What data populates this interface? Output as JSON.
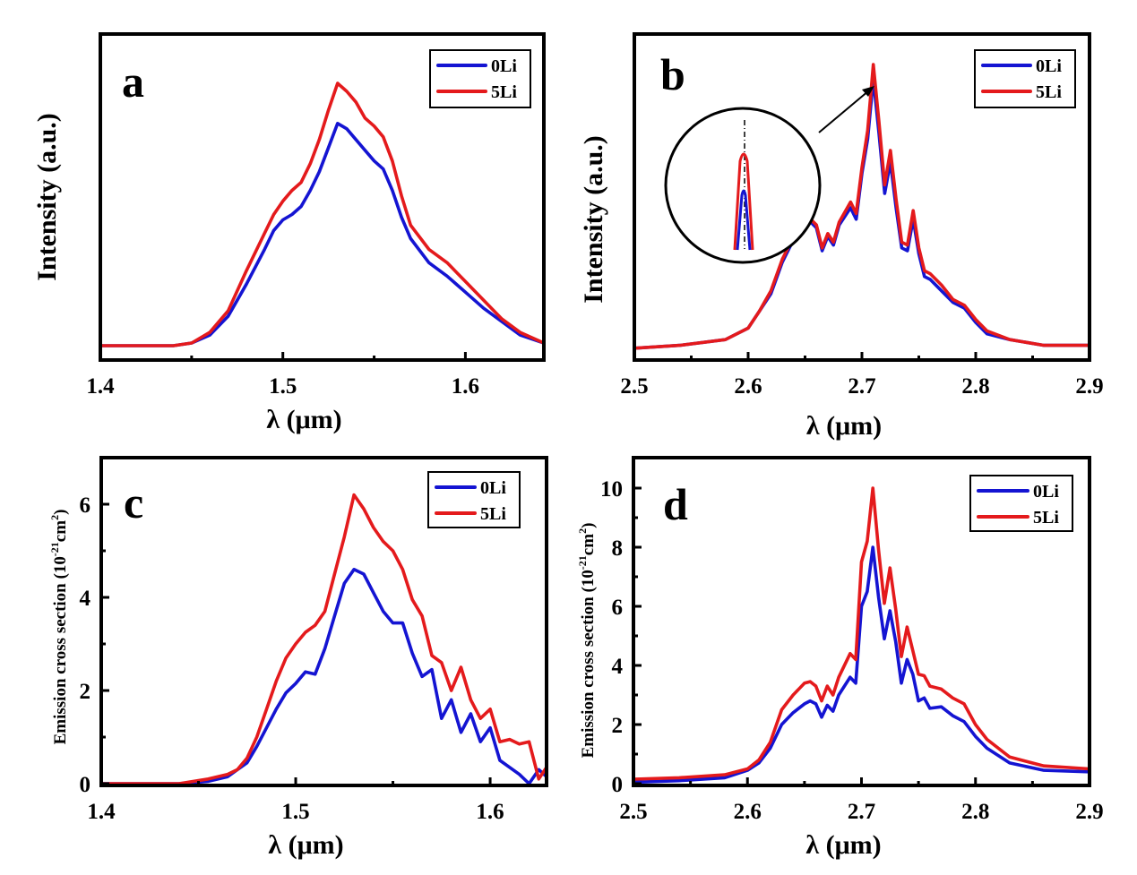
{
  "figure": {
    "colors": {
      "0Li": "#1414d2",
      "5Li": "#e41a1c",
      "axis": "#000000"
    }
  },
  "chart_data": [
    {
      "id": "a",
      "type": "line",
      "panel_label": "a",
      "title": "",
      "xlabel": "λ (μm)",
      "ylabel": "Intensity (a.u.)",
      "xlim": [
        1.4,
        1.643
      ],
      "ylim": [
        0,
        1.0
      ],
      "xticks": [
        1.4,
        1.5,
        1.6
      ],
      "xtick_labels": [
        "1.4",
        "1.5",
        "1.6"
      ],
      "xminor": [
        1.45,
        1.55
      ],
      "yticks": [],
      "legend": {
        "placement": "top-right",
        "entries": [
          "0Li",
          "5Li"
        ]
      },
      "series": [
        {
          "name": "0Li",
          "x": [
            1.4,
            1.42,
            1.44,
            1.45,
            1.46,
            1.47,
            1.48,
            1.49,
            1.495,
            1.5,
            1.505,
            1.51,
            1.515,
            1.52,
            1.525,
            1.53,
            1.535,
            1.54,
            1.545,
            1.55,
            1.555,
            1.56,
            1.565,
            1.57,
            1.58,
            1.59,
            1.6,
            1.61,
            1.62,
            1.63,
            1.643
          ],
          "y": [
            0.02,
            0.02,
            0.02,
            0.03,
            0.06,
            0.13,
            0.25,
            0.38,
            0.45,
            0.49,
            0.51,
            0.54,
            0.6,
            0.67,
            0.76,
            0.85,
            0.83,
            0.79,
            0.75,
            0.71,
            0.68,
            0.6,
            0.5,
            0.42,
            0.33,
            0.28,
            0.22,
            0.16,
            0.11,
            0.06,
            0.03
          ]
        },
        {
          "name": "5Li",
          "x": [
            1.4,
            1.42,
            1.44,
            1.45,
            1.46,
            1.47,
            1.48,
            1.49,
            1.495,
            1.5,
            1.505,
            1.51,
            1.515,
            1.52,
            1.525,
            1.53,
            1.535,
            1.54,
            1.545,
            1.55,
            1.555,
            1.56,
            1.565,
            1.57,
            1.58,
            1.59,
            1.6,
            1.61,
            1.62,
            1.63,
            1.643
          ],
          "y": [
            0.02,
            0.02,
            0.02,
            0.03,
            0.07,
            0.15,
            0.3,
            0.44,
            0.51,
            0.56,
            0.6,
            0.63,
            0.7,
            0.79,
            0.9,
            1.0,
            0.97,
            0.93,
            0.87,
            0.84,
            0.8,
            0.71,
            0.58,
            0.47,
            0.38,
            0.33,
            0.26,
            0.19,
            0.12,
            0.07,
            0.03
          ]
        }
      ]
    },
    {
      "id": "b",
      "type": "line",
      "panel_label": "b",
      "title": "",
      "xlabel": "λ (μm)",
      "ylabel": "Intensity (a.u.)",
      "xlim": [
        2.5,
        2.9
      ],
      "ylim": [
        0,
        1.0
      ],
      "xticks": [
        2.5,
        2.6,
        2.7,
        2.8,
        2.9
      ],
      "xtick_labels": [
        "2.5",
        "2.6",
        "2.7",
        "2.8",
        "2.9"
      ],
      "xminor": [
        2.55,
        2.65,
        2.75,
        2.85
      ],
      "yticks": [],
      "legend": {
        "placement": "top-right",
        "entries": [
          "0Li",
          "5Li"
        ]
      },
      "annotations": [
        "circular inset magnifying the main peak near 2.71 μm (5Li peak above 0Li), with arrow pointing to the peak"
      ],
      "series": [
        {
          "name": "0Li",
          "x": [
            2.5,
            2.54,
            2.58,
            2.6,
            2.61,
            2.62,
            2.63,
            2.64,
            2.65,
            2.655,
            2.66,
            2.665,
            2.67,
            2.675,
            2.68,
            2.69,
            2.695,
            2.7,
            2.705,
            2.71,
            2.715,
            2.72,
            2.725,
            2.73,
            2.735,
            2.74,
            2.745,
            2.75,
            2.755,
            2.76,
            2.77,
            2.78,
            2.79,
            2.8,
            2.81,
            2.83,
            2.86,
            2.9
          ],
          "y": [
            0.01,
            0.02,
            0.04,
            0.08,
            0.14,
            0.2,
            0.31,
            0.39,
            0.44,
            0.45,
            0.43,
            0.35,
            0.4,
            0.37,
            0.44,
            0.5,
            0.46,
            0.62,
            0.74,
            0.95,
            0.76,
            0.55,
            0.66,
            0.5,
            0.36,
            0.35,
            0.46,
            0.34,
            0.26,
            0.25,
            0.21,
            0.17,
            0.15,
            0.1,
            0.06,
            0.04,
            0.02,
            0.02
          ]
        },
        {
          "name": "5Li",
          "x": [
            2.5,
            2.54,
            2.58,
            2.6,
            2.61,
            2.62,
            2.63,
            2.64,
            2.65,
            2.655,
            2.66,
            2.665,
            2.67,
            2.675,
            2.68,
            2.69,
            2.695,
            2.7,
            2.705,
            2.71,
            2.715,
            2.72,
            2.725,
            2.73,
            2.735,
            2.74,
            2.745,
            2.75,
            2.755,
            2.76,
            2.77,
            2.78,
            2.79,
            2.8,
            2.81,
            2.83,
            2.86,
            2.9
          ],
          "y": [
            0.01,
            0.02,
            0.04,
            0.08,
            0.14,
            0.21,
            0.32,
            0.4,
            0.45,
            0.46,
            0.44,
            0.36,
            0.41,
            0.38,
            0.45,
            0.52,
            0.48,
            0.64,
            0.77,
            1.0,
            0.8,
            0.58,
            0.7,
            0.53,
            0.38,
            0.37,
            0.49,
            0.36,
            0.28,
            0.27,
            0.23,
            0.18,
            0.16,
            0.11,
            0.07,
            0.04,
            0.02,
            0.02
          ]
        }
      ]
    },
    {
      "id": "c",
      "type": "line",
      "panel_label": "c",
      "title": "",
      "xlabel": "λ (μm)",
      "ylabel": "Emission cross section (10^-21 cm^2)",
      "xlim": [
        1.4,
        1.629
      ],
      "ylim": [
        0,
        7
      ],
      "xticks": [
        1.4,
        1.5,
        1.6
      ],
      "xtick_labels": [
        "1.4",
        "1.5",
        "1.6"
      ],
      "xminor": [
        1.45,
        1.55
      ],
      "yticks": [
        0,
        2,
        4,
        6
      ],
      "ytick_labels": [
        "0",
        "2",
        "4",
        "6"
      ],
      "yminor": [
        1,
        3,
        5
      ],
      "legend": {
        "placement": "top-right",
        "entries": [
          "0Li",
          "5Li"
        ]
      },
      "series": [
        {
          "name": "0Li",
          "x": [
            1.4,
            1.44,
            1.455,
            1.465,
            1.47,
            1.475,
            1.48,
            1.485,
            1.49,
            1.495,
            1.5,
            1.505,
            1.51,
            1.515,
            1.52,
            1.525,
            1.53,
            1.535,
            1.54,
            1.545,
            1.55,
            1.555,
            1.56,
            1.565,
            1.57,
            1.575,
            1.58,
            1.585,
            1.59,
            1.595,
            1.6,
            1.605,
            1.61,
            1.615,
            1.62,
            1.625,
            1.629
          ],
          "y": [
            0,
            0,
            0.05,
            0.15,
            0.3,
            0.45,
            0.8,
            1.2,
            1.6,
            1.95,
            2.15,
            2.4,
            2.35,
            2.9,
            3.6,
            4.3,
            4.6,
            4.5,
            4.1,
            3.7,
            3.45,
            3.45,
            2.8,
            2.3,
            2.45,
            1.4,
            1.8,
            1.1,
            1.5,
            0.9,
            1.2,
            0.5,
            0.35,
            0.2,
            0.0,
            0.3,
            0.15
          ]
        },
        {
          "name": "5Li",
          "x": [
            1.4,
            1.44,
            1.455,
            1.465,
            1.47,
            1.475,
            1.48,
            1.485,
            1.49,
            1.495,
            1.5,
            1.505,
            1.51,
            1.515,
            1.52,
            1.525,
            1.53,
            1.535,
            1.54,
            1.545,
            1.55,
            1.555,
            1.56,
            1.565,
            1.57,
            1.575,
            1.58,
            1.585,
            1.59,
            1.595,
            1.6,
            1.605,
            1.61,
            1.615,
            1.62,
            1.625,
            1.629
          ],
          "y": [
            0,
            0,
            0.1,
            0.2,
            0.3,
            0.55,
            1.0,
            1.6,
            2.2,
            2.7,
            3.0,
            3.25,
            3.4,
            3.7,
            4.5,
            5.3,
            6.2,
            5.9,
            5.5,
            5.2,
            5.0,
            4.6,
            3.95,
            3.6,
            2.75,
            2.6,
            2.0,
            2.5,
            1.8,
            1.4,
            1.6,
            0.9,
            0.95,
            0.85,
            0.9,
            0.1,
            0.35
          ]
        }
      ]
    },
    {
      "id": "d",
      "type": "line",
      "panel_label": "d",
      "title": "",
      "xlabel": "λ (μm)",
      "ylabel": "Emission cross section (10^-21 cm^2)",
      "xlim": [
        2.5,
        2.9
      ],
      "ylim": [
        0,
        11
      ],
      "xticks": [
        2.5,
        2.6,
        2.7,
        2.8,
        2.9
      ],
      "xtick_labels": [
        "2.5",
        "2.6",
        "2.7",
        "2.8",
        "2.9"
      ],
      "xminor": [
        2.55,
        2.65,
        2.75,
        2.85
      ],
      "yticks": [
        0,
        2,
        4,
        6,
        8,
        10
      ],
      "ytick_labels": [
        "0",
        "2",
        "4",
        "6",
        "8",
        "10"
      ],
      "yminor": [
        1,
        3,
        5,
        7,
        9
      ],
      "legend": {
        "placement": "top-right",
        "entries": [
          "0Li",
          "5Li"
        ]
      },
      "series": [
        {
          "name": "0Li",
          "x": [
            2.5,
            2.54,
            2.58,
            2.6,
            2.61,
            2.62,
            2.63,
            2.64,
            2.65,
            2.655,
            2.66,
            2.665,
            2.67,
            2.675,
            2.68,
            2.69,
            2.695,
            2.7,
            2.705,
            2.71,
            2.715,
            2.72,
            2.725,
            2.73,
            2.735,
            2.74,
            2.745,
            2.75,
            2.755,
            2.76,
            2.77,
            2.78,
            2.79,
            2.8,
            2.81,
            2.83,
            2.86,
            2.9
          ],
          "y": [
            0.05,
            0.1,
            0.2,
            0.45,
            0.7,
            1.2,
            2.0,
            2.4,
            2.7,
            2.8,
            2.7,
            2.25,
            2.65,
            2.45,
            3.0,
            3.6,
            3.4,
            6.0,
            6.5,
            8.0,
            6.3,
            4.9,
            5.85,
            4.8,
            3.4,
            4.2,
            3.7,
            2.8,
            2.9,
            2.55,
            2.6,
            2.3,
            2.1,
            1.6,
            1.2,
            0.7,
            0.45,
            0.4
          ]
        },
        {
          "name": "5Li",
          "x": [
            2.5,
            2.54,
            2.58,
            2.6,
            2.61,
            2.62,
            2.63,
            2.64,
            2.65,
            2.655,
            2.66,
            2.665,
            2.67,
            2.675,
            2.68,
            2.69,
            2.695,
            2.7,
            2.705,
            2.71,
            2.715,
            2.72,
            2.725,
            2.73,
            2.735,
            2.74,
            2.745,
            2.75,
            2.755,
            2.76,
            2.77,
            2.78,
            2.79,
            2.8,
            2.81,
            2.83,
            2.86,
            2.9
          ],
          "y": [
            0.15,
            0.2,
            0.3,
            0.5,
            0.8,
            1.4,
            2.5,
            3.0,
            3.4,
            3.45,
            3.3,
            2.8,
            3.3,
            3.0,
            3.6,
            4.4,
            4.2,
            7.5,
            8.2,
            10.0,
            7.9,
            6.1,
            7.3,
            5.9,
            4.3,
            5.3,
            4.5,
            3.7,
            3.65,
            3.3,
            3.2,
            2.9,
            2.7,
            2.0,
            1.5,
            0.9,
            0.6,
            0.5
          ]
        }
      ]
    }
  ]
}
